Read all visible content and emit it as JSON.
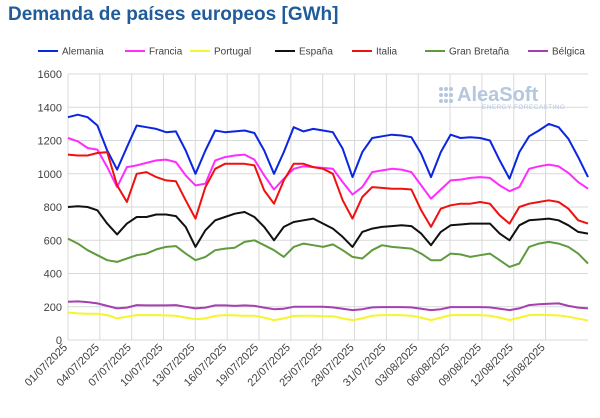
{
  "chart_data": {
    "type": "line",
    "title": "Demanda de países europeos [GWh]",
    "watermark": {
      "brand": "AleaSoft",
      "tagline": "ENERGY FORECASTING"
    },
    "grid": true,
    "legend_position": "top",
    "ylim": [
      0,
      1600
    ],
    "yticks": [
      0,
      200,
      400,
      600,
      800,
      1000,
      1200,
      1400,
      1600
    ],
    "x_start": "01/07/2025",
    "x_end": "19/08/2025",
    "xticks": [
      "01/07/2025",
      "04/07/2025",
      "07/07/2025",
      "10/07/2025",
      "13/07/2025",
      "16/07/2025",
      "19/07/2025",
      "22/07/2025",
      "25/07/2025",
      "28/07/2025",
      "31/07/2025",
      "03/08/2025",
      "06/08/2025",
      "09/08/2025",
      "12/08/2025",
      "15/08/2025"
    ],
    "series": [
      {
        "name": "Alemania",
        "color": "#0a26e0",
        "values": [
          1340,
          1355,
          1340,
          1290,
          1140,
          1025,
          1160,
          1290,
          1280,
          1270,
          1250,
          1255,
          1140,
          1000,
          1140,
          1260,
          1250,
          1255,
          1260,
          1245,
          1140,
          1000,
          1130,
          1280,
          1255,
          1270,
          1260,
          1250,
          1150,
          980,
          1130,
          1215,
          1225,
          1235,
          1230,
          1220,
          1120,
          980,
          1130,
          1235,
          1215,
          1220,
          1215,
          1200,
          1080,
          970,
          1130,
          1225,
          1260,
          1300,
          1280,
          1210,
          1100,
          980
        ]
      },
      {
        "name": "Francia",
        "color": "#ff2cff",
        "values": [
          1215,
          1195,
          1155,
          1145,
          1040,
          920,
          1040,
          1050,
          1065,
          1080,
          1085,
          1070,
          990,
          930,
          940,
          1080,
          1100,
          1110,
          1115,
          1085,
          990,
          905,
          970,
          1030,
          1045,
          1040,
          1035,
          1030,
          950,
          875,
          920,
          1010,
          1020,
          1030,
          1025,
          1010,
          930,
          850,
          905,
          960,
          965,
          975,
          980,
          975,
          930,
          895,
          920,
          1030,
          1045,
          1055,
          1045,
          1005,
          950,
          910
        ]
      },
      {
        "name": "Portugal",
        "color": "#f5f52b",
        "values": [
          165,
          160,
          158,
          158,
          150,
          130,
          140,
          150,
          150,
          150,
          148,
          146,
          135,
          125,
          130,
          145,
          150,
          148,
          146,
          146,
          135,
          120,
          130,
          145,
          146,
          146,
          143,
          143,
          130,
          120,
          130,
          146,
          150,
          150,
          149,
          146,
          135,
          120,
          135,
          150,
          150,
          150,
          150,
          146,
          135,
          120,
          135,
          150,
          152,
          150,
          148,
          140,
          128,
          118
        ]
      },
      {
        "name": "España",
        "color": "#111111",
        "values": [
          800,
          805,
          800,
          780,
          700,
          635,
          700,
          740,
          740,
          755,
          755,
          745,
          680,
          560,
          660,
          720,
          740,
          760,
          770,
          740,
          680,
          600,
          680,
          710,
          720,
          730,
          700,
          670,
          620,
          560,
          650,
          670,
          680,
          685,
          690,
          685,
          640,
          570,
          650,
          690,
          695,
          700,
          700,
          700,
          640,
          600,
          690,
          720,
          725,
          730,
          720,
          690,
          650,
          640
        ]
      },
      {
        "name": "Italia",
        "color": "#ef1010",
        "values": [
          1115,
          1110,
          1110,
          1125,
          1130,
          930,
          830,
          1000,
          1010,
          980,
          960,
          955,
          840,
          730,
          920,
          1030,
          1060,
          1060,
          1060,
          1050,
          900,
          820,
          960,
          1060,
          1060,
          1040,
          1030,
          1000,
          840,
          730,
          860,
          920,
          915,
          910,
          910,
          905,
          780,
          680,
          790,
          810,
          820,
          820,
          830,
          820,
          750,
          700,
          800,
          820,
          830,
          840,
          830,
          790,
          720,
          700
        ]
      },
      {
        "name": "Gran Bretaña",
        "color": "#5f9b3d",
        "values": [
          610,
          580,
          540,
          510,
          480,
          470,
          490,
          510,
          520,
          545,
          560,
          565,
          520,
          480,
          500,
          540,
          550,
          555,
          590,
          600,
          570,
          540,
          500,
          560,
          580,
          570,
          560,
          575,
          540,
          500,
          490,
          540,
          570,
          560,
          555,
          550,
          520,
          480,
          480,
          520,
          515,
          500,
          510,
          520,
          480,
          440,
          460,
          560,
          580,
          590,
          580,
          560,
          520,
          460
        ]
      },
      {
        "name": "Bélgica",
        "color": "#a63fb0",
        "values": [
          230,
          232,
          228,
          220,
          205,
          190,
          195,
          210,
          208,
          208,
          208,
          210,
          200,
          190,
          195,
          208,
          208,
          205,
          208,
          205,
          195,
          185,
          188,
          200,
          200,
          200,
          200,
          196,
          188,
          180,
          185,
          196,
          198,
          198,
          198,
          196,
          188,
          180,
          185,
          198,
          198,
          198,
          198,
          196,
          188,
          180,
          190,
          210,
          215,
          218,
          220,
          205,
          195,
          190
        ]
      }
    ]
  }
}
